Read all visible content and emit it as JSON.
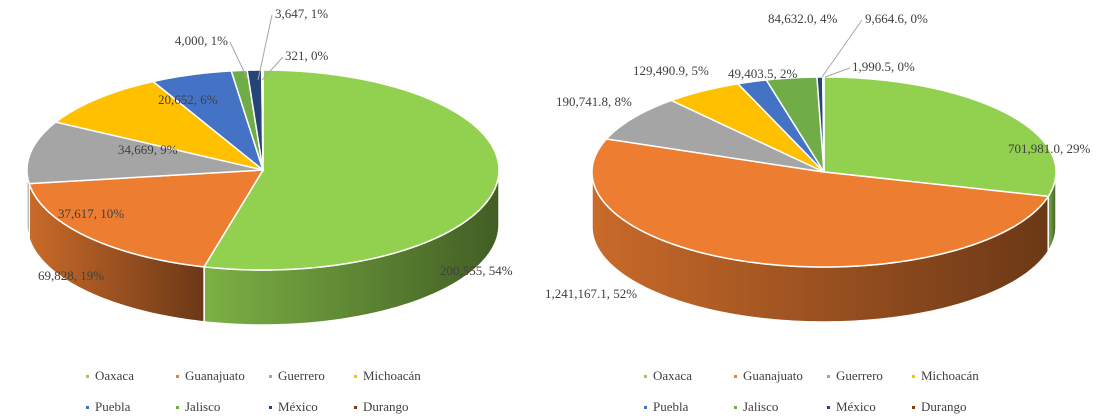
{
  "chart_data": [
    {
      "type": "pie",
      "categories": [
        "Oaxaca",
        "Guanajuato",
        "Guerrero",
        "Michoacán",
        "Puebla",
        "Jalisco",
        "México",
        "Durango"
      ],
      "values": [
        200555,
        69828,
        37617,
        34669,
        20652,
        4000,
        3647,
        321
      ],
      "value_labels": [
        "200,555, 54%",
        "69,828, 19%",
        "37,617, 10%",
        "34,669, 9%",
        "20,652, 6%",
        "4,000, 1%",
        "3,647, 1%",
        "321, 0%"
      ],
      "colors": [
        "#92d050",
        "#ed7d31",
        "#a5a5a5",
        "#ffc000",
        "#4472c4",
        "#70ad47",
        "#264478",
        "#843c0c"
      ]
    },
    {
      "type": "pie",
      "categories": [
        "Oaxaca",
        "Guanajuato",
        "Guerrero",
        "Michoacán",
        "Puebla",
        "Jalisco",
        "México",
        "Durango"
      ],
      "values": [
        701981.0,
        1241167.1,
        190741.8,
        129490.9,
        49403.5,
        84632.0,
        9664.6,
        1990.5
      ],
      "value_labels": [
        "701,981.0, 29%",
        "1,241,167.1, 52%",
        "190,741.8, 8%",
        "129,490.9, 5%",
        "49,403.5, 2%",
        "84,632.0, 4%",
        "9,664.6, 0%",
        "1,990.5, 0%"
      ],
      "colors": [
        "#92d050",
        "#ed7d31",
        "#a5a5a5",
        "#ffc000",
        "#4472c4",
        "#70ad47",
        "#264478",
        "#843c0c"
      ]
    }
  ]
}
